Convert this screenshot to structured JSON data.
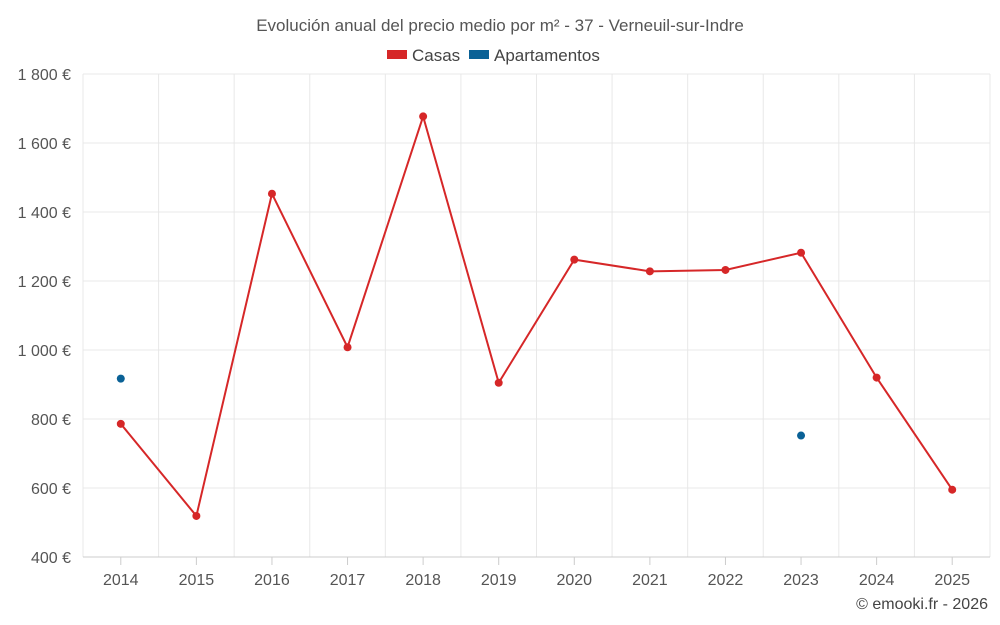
{
  "chart_data": {
    "type": "line",
    "title": "Evolución anual del precio medio por m² - 37 - Verneuil-sur-Indre",
    "categories": [
      "2014",
      "2015",
      "2016",
      "2017",
      "2018",
      "2019",
      "2020",
      "2021",
      "2022",
      "2023",
      "2024",
      "2025"
    ],
    "series": [
      {
        "name": "Casas",
        "color": "#d62728",
        "values": [
          786,
          519,
          1453,
          1008,
          1677,
          905,
          1262,
          1228,
          1232,
          1282,
          920,
          595
        ]
      },
      {
        "name": "Apartamentos",
        "color": "#0a6196",
        "values": [
          917,
          null,
          null,
          null,
          null,
          null,
          null,
          null,
          null,
          752,
          null,
          null
        ]
      }
    ],
    "ylim": [
      400,
      1800
    ],
    "yticks": [
      400,
      600,
      800,
      1000,
      1200,
      1400,
      1600,
      1800
    ],
    "ytick_labels": [
      "400 €",
      "600 €",
      "800 €",
      "1 000 €",
      "1 200 €",
      "1 400 €",
      "1 600 €",
      "1 800 €"
    ],
    "xlabel": "",
    "ylabel": "",
    "grid": true,
    "legend_position": "top-center"
  },
  "credit": "© emooki.fr - 2026"
}
